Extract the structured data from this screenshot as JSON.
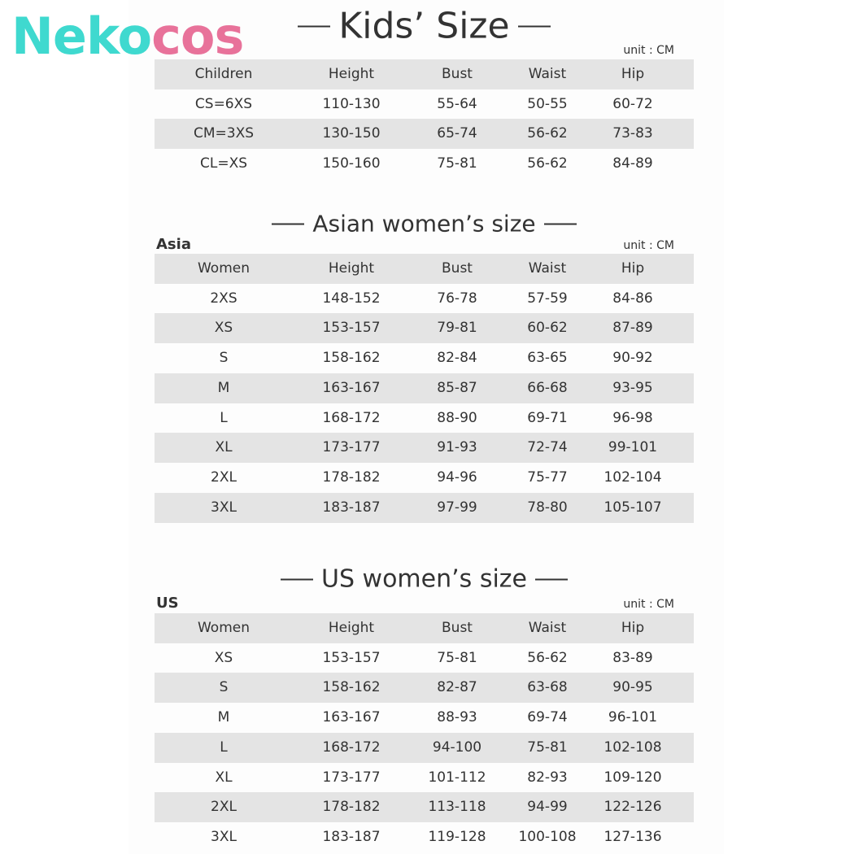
{
  "logo": {
    "parts": [
      "Nek",
      "o",
      "cos"
    ]
  },
  "sections": [
    {
      "title": "Kids’ Size",
      "unit": "unit : CM",
      "header": [
        "Children",
        "Height",
        "Bust",
        "Waist",
        "Hip"
      ],
      "rows": [
        [
          "CS=6XS",
          "110-130",
          "55-64",
          "50-55",
          "60-72"
        ],
        [
          "CM=3XS",
          "130-150",
          "65-74",
          "56-62",
          "73-83"
        ],
        [
          "CL=XS",
          "150-160",
          "75-81",
          "56-62",
          "84-89"
        ]
      ]
    },
    {
      "title": "Asian women’s size",
      "region": "Asia",
      "unit": "unit : CM",
      "header": [
        "Women",
        "Height",
        "Bust",
        "Waist",
        "Hip"
      ],
      "rows": [
        [
          "2XS",
          "148-152",
          "76-78",
          "57-59",
          "84-86"
        ],
        [
          "XS",
          "153-157",
          "79-81",
          "60-62",
          "87-89"
        ],
        [
          "S",
          "158-162",
          "82-84",
          "63-65",
          "90-92"
        ],
        [
          "M",
          "163-167",
          "85-87",
          "66-68",
          "93-95"
        ],
        [
          "L",
          "168-172",
          "88-90",
          "69-71",
          "96-98"
        ],
        [
          "XL",
          "173-177",
          "91-93",
          "72-74",
          "99-101"
        ],
        [
          "2XL",
          "178-182",
          "94-96",
          "75-77",
          "102-104"
        ],
        [
          "3XL",
          "183-187",
          "97-99",
          "78-80",
          "105-107"
        ]
      ]
    },
    {
      "title": "US women’s size",
      "region": "US",
      "unit": "unit : CM",
      "header": [
        "Women",
        "Height",
        "Bust",
        "Waist",
        "Hip"
      ],
      "rows": [
        [
          "XS",
          "153-157",
          "75-81",
          "56-62",
          "83-89"
        ],
        [
          "S",
          "158-162",
          "82-87",
          "63-68",
          "90-95"
        ],
        [
          "M",
          "163-167",
          "88-93",
          "69-74",
          "96-101"
        ],
        [
          "L",
          "168-172",
          "94-100",
          "75-81",
          "102-108"
        ],
        [
          "XL",
          "173-177",
          "101-112",
          "82-93",
          "109-120"
        ],
        [
          "2XL",
          "178-182",
          "113-118",
          "94-99",
          "122-126"
        ],
        [
          "3XL",
          "183-187",
          "119-128",
          "100-108",
          "127-136"
        ]
      ]
    }
  ]
}
